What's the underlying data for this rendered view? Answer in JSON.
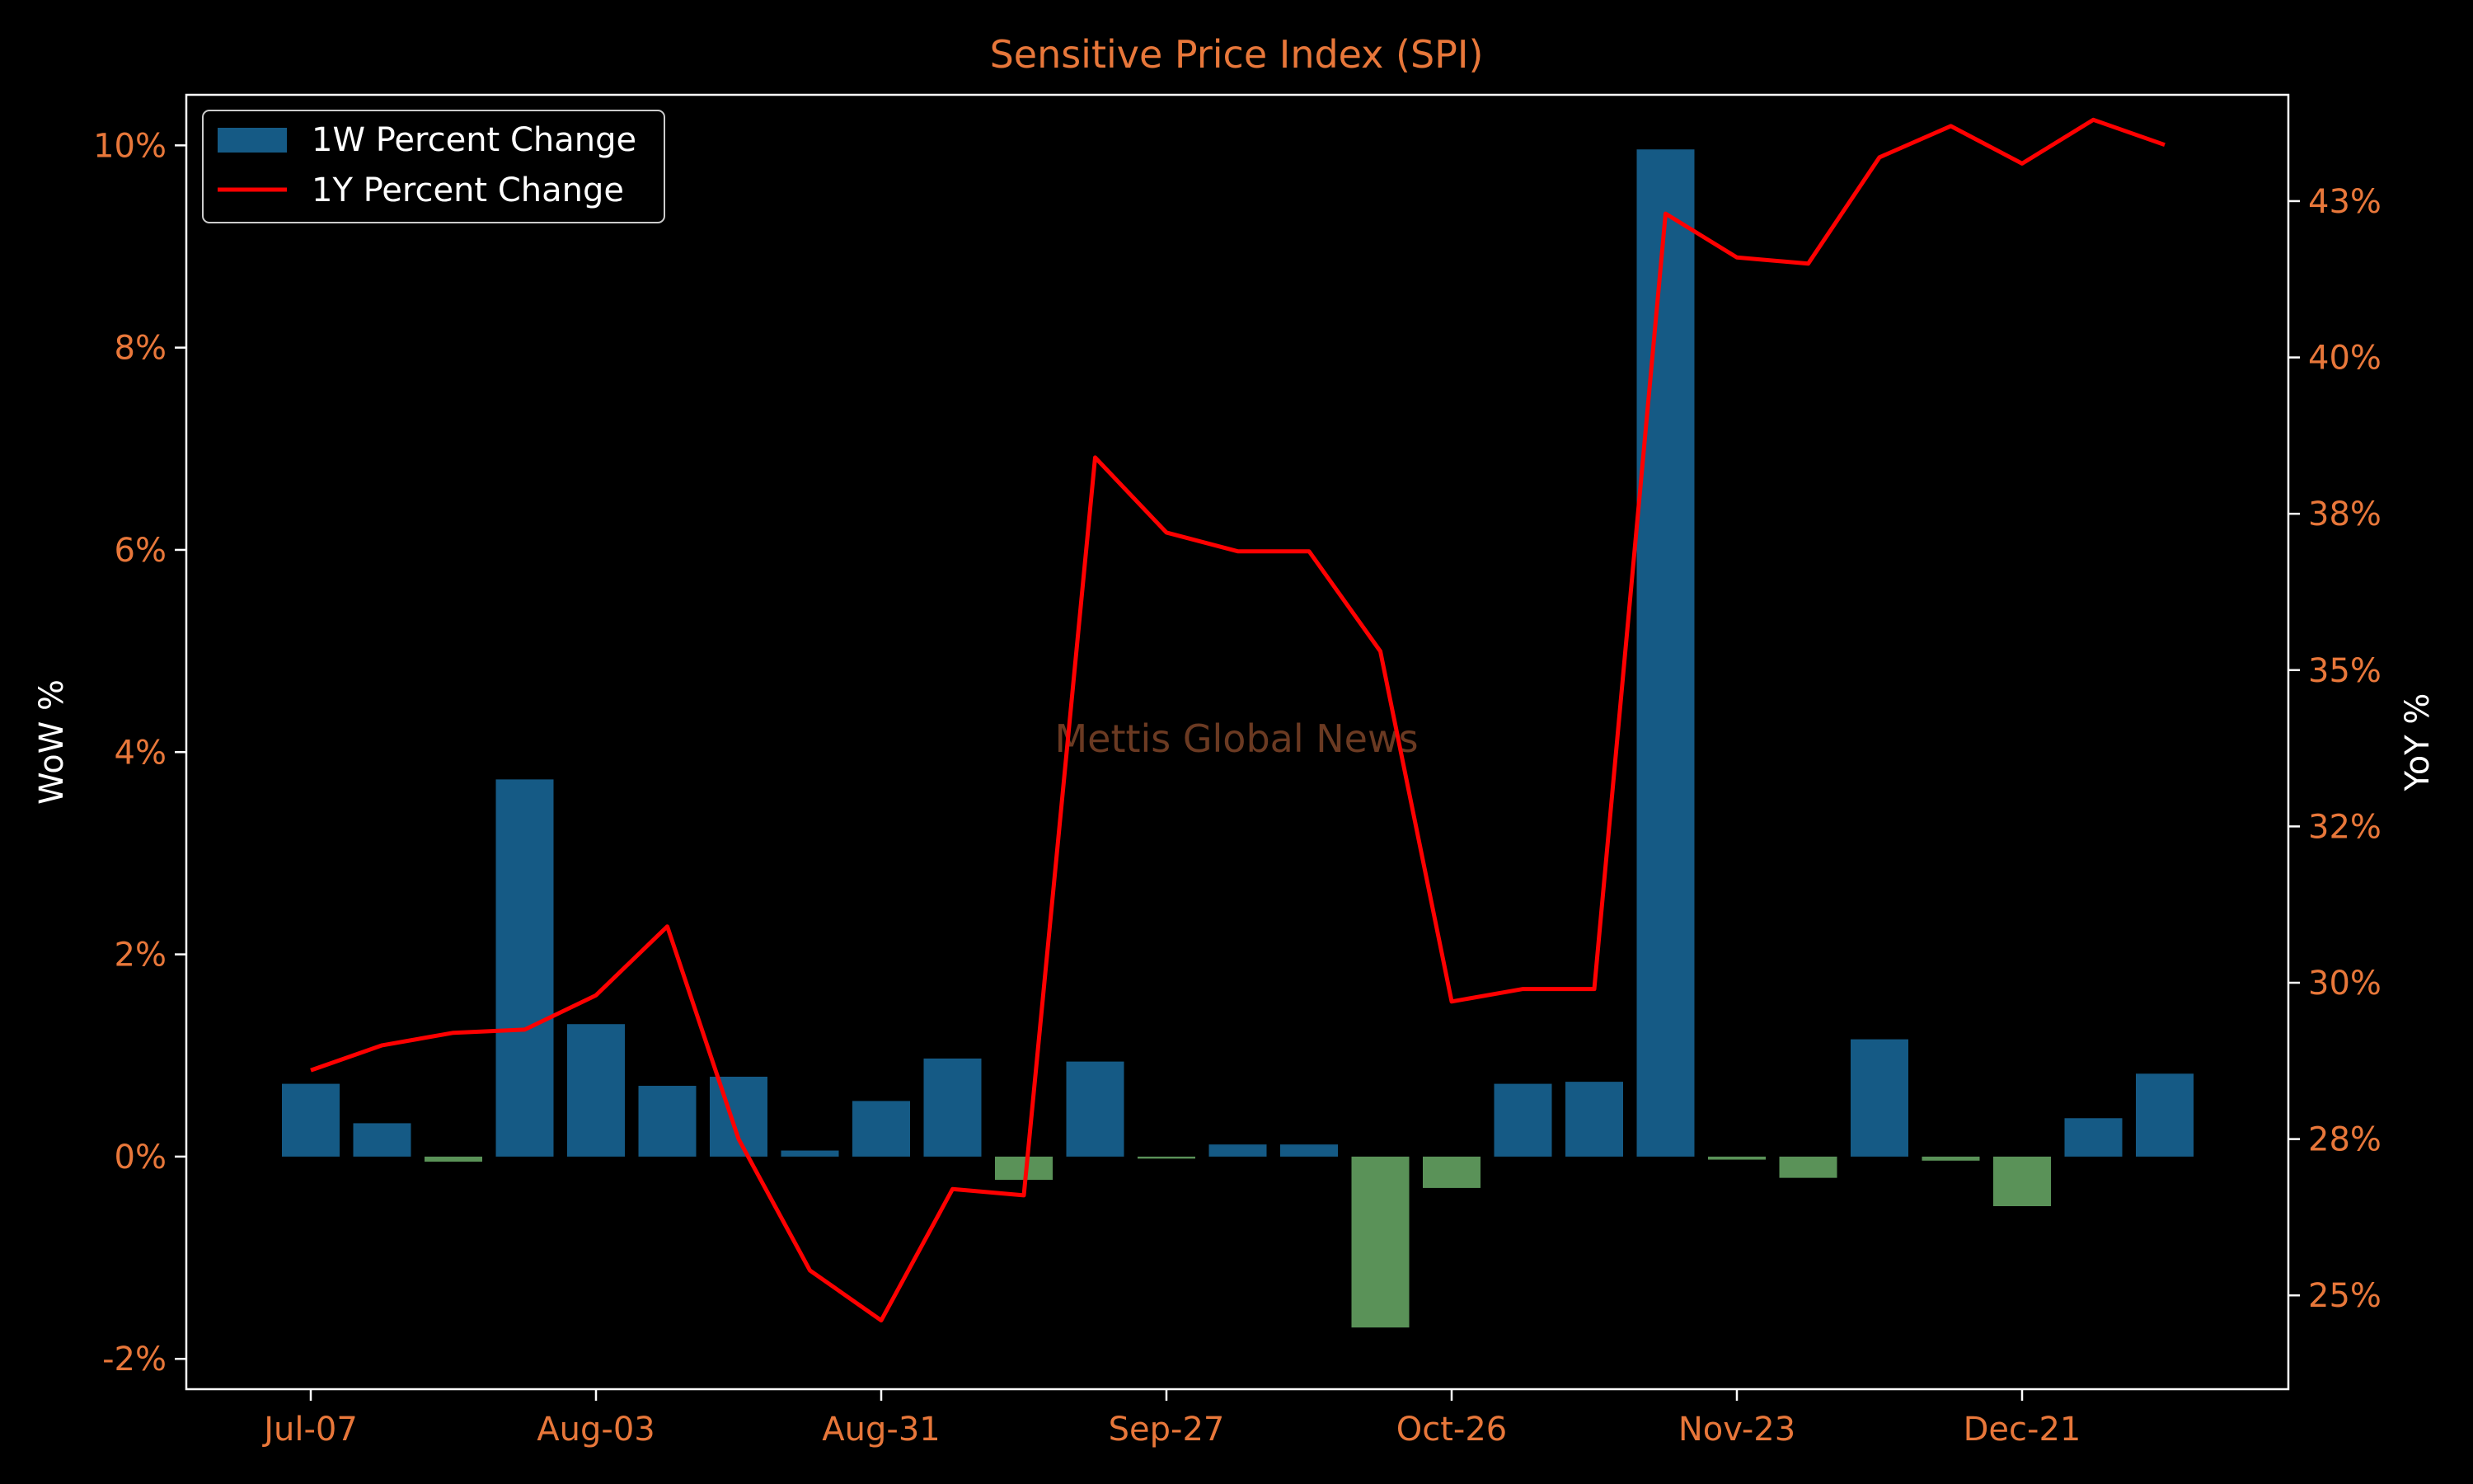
{
  "chart_data": {
    "type": "bar+line",
    "title": "Sensitive Price Index (SPI)",
    "ylabel_left": "WoW %",
    "ylabel_right": "YoY %",
    "watermark": "Mettis Global News",
    "legend": {
      "placement": "top-left",
      "entries": [
        "1W Percent Change",
        "1Y Percent Change"
      ]
    },
    "x_tick_labels": [
      "Jul-07",
      "Aug-03",
      "Aug-31",
      "Sep-27",
      "Oct-26",
      "Nov-23",
      "Dec-21"
    ],
    "x_tick_indices": [
      0,
      4,
      8,
      12,
      16,
      20,
      24
    ],
    "y_left_ticks": [
      "-2%",
      "0%",
      "2%",
      "4%",
      "6%",
      "8%",
      "10%"
    ],
    "y_left_tick_values": [
      -2,
      0,
      2,
      4,
      6,
      8,
      10
    ],
    "y_left_range": [
      -2.3,
      10.5
    ],
    "y_right_ticks": [
      "25%",
      "28%",
      "30%",
      "32%",
      "35%",
      "38%",
      "40%",
      "43%"
    ],
    "y_right_tick_values": [
      25,
      27.5,
      30,
      32.5,
      35,
      37.5,
      40,
      42.5
    ],
    "y_right_range": [
      23.5,
      44.2
    ],
    "grid": false,
    "series": [
      {
        "name": "1W Percent Change",
        "type": "bar",
        "values": [
          0.72,
          0.33,
          -0.05,
          3.73,
          1.31,
          0.7,
          0.79,
          0.06,
          0.55,
          0.97,
          -0.23,
          0.94,
          -0.02,
          0.12,
          0.12,
          -1.69,
          -0.31,
          0.72,
          0.74,
          9.96,
          -0.03,
          -0.21,
          1.16,
          -0.04,
          -0.49,
          0.38,
          0.82
        ]
      },
      {
        "name": "1Y Percent Change",
        "type": "line",
        "values": [
          28.6,
          29.0,
          29.2,
          29.25,
          29.8,
          30.9,
          27.5,
          25.4,
          24.6,
          26.7,
          26.6,
          38.4,
          37.2,
          36.9,
          36.9,
          35.3,
          29.7,
          29.9,
          29.9,
          42.3,
          41.6,
          41.5,
          43.2,
          43.7,
          43.1,
          43.8,
          43.4
        ]
      }
    ],
    "colors": {
      "bar_positive": "#155a85",
      "bar_negative": "#5a9258",
      "line": "#ff0000",
      "title": "#e8773a",
      "tick_labels": "#e8773a",
      "axis_labels": "#ffffff",
      "watermark": "#6b3a22",
      "spines": "#ffffff",
      "background": "#000000"
    }
  }
}
